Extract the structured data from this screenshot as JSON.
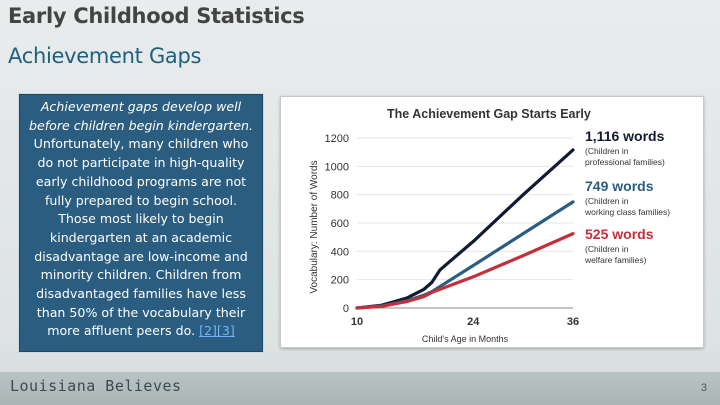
{
  "slide": {
    "title": "Early Childhood Statistics",
    "subtitle": "Achievement Gaps",
    "text_lead": "Achievement gaps develop well before children begin kindergarten.",
    "text_body": " Unfortunately, many children who do not participate in high-quality early childhood programs are not fully prepared to begin school. Those most likely to begin kindergarten at an academic disadvantage are low-income and minority children. Children from disadvantaged families have less than 50% of the vocabulary their more affluent peers do. ",
    "refs": "[2][3]",
    "footer_logo": "Louisiana Believes",
    "page_number": "3",
    "colors": {
      "textbox_bg": "#2a5d80",
      "title": "#444444",
      "subtitle": "#1f5f7f"
    }
  },
  "chart_data": {
    "type": "line",
    "title": "The Achievement Gap Starts Early",
    "xlabel": "Child's Age in Months",
    "ylabel": "Vocabulary: Number of Words",
    "xlim": [
      10,
      36
    ],
    "ylim": [
      0,
      1200
    ],
    "x_ticks": [
      "10",
      "24",
      "36"
    ],
    "y_ticks": [
      "0",
      "200",
      "400",
      "600",
      "800",
      "1000",
      "1200"
    ],
    "series": [
      {
        "color": "#121a33",
        "label_value": "1,116 words",
        "label_desc": [
          "(Children in",
          "professional families)"
        ],
        "points": [
          [
            10,
            0
          ],
          [
            13,
            20
          ],
          [
            16,
            70
          ],
          [
            18,
            130
          ],
          [
            19,
            180
          ],
          [
            20,
            270
          ],
          [
            21,
            320
          ],
          [
            24,
            470
          ],
          [
            30,
            800
          ],
          [
            36,
            1116
          ]
        ]
      },
      {
        "color": "#2a5d80",
        "label_value": "749 words",
        "label_desc": [
          "(Children in",
          "working class families)"
        ],
        "points": [
          [
            10,
            0
          ],
          [
            13,
            15
          ],
          [
            16,
            50
          ],
          [
            18,
            90
          ],
          [
            19,
            115
          ],
          [
            24,
            300
          ],
          [
            30,
            525
          ],
          [
            36,
            749
          ]
        ]
      },
      {
        "color": "#c4303a",
        "label_value": "525 words",
        "label_desc": [
          "(Children in",
          "welfare families)"
        ],
        "points": [
          [
            10,
            0
          ],
          [
            13,
            12
          ],
          [
            16,
            45
          ],
          [
            18,
            80
          ],
          [
            19,
            110
          ],
          [
            24,
            220
          ],
          [
            30,
            370
          ],
          [
            36,
            525
          ]
        ]
      }
    ]
  }
}
